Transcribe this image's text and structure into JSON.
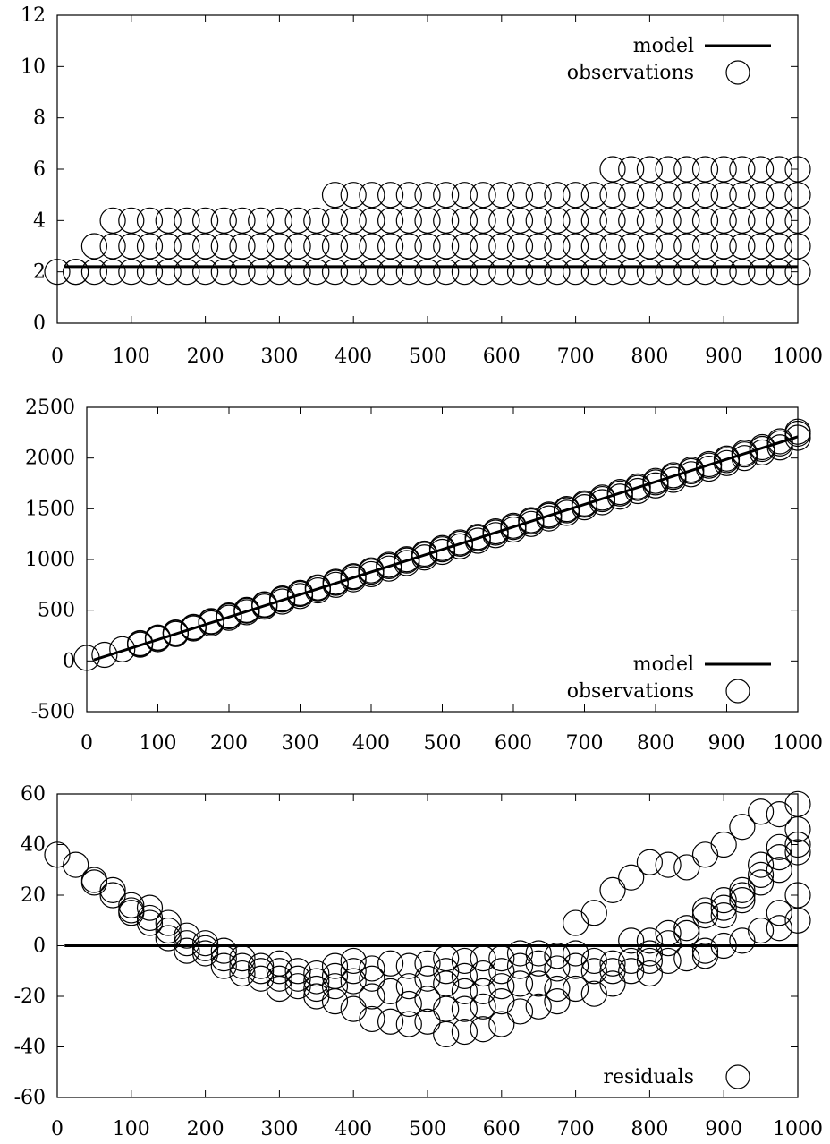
{
  "chart_data": [
    {
      "type": "scatter",
      "title": "",
      "xlabel": "",
      "ylabel": "",
      "xlim": [
        0,
        1000
      ],
      "ylim": [
        0,
        12
      ],
      "xticks": [
        0,
        100,
        200,
        300,
        400,
        500,
        600,
        700,
        800,
        900,
        1000
      ],
      "yticks": [
        0,
        2,
        4,
        6,
        8,
        10,
        12
      ],
      "xtick_labels": [
        "0",
        "100",
        "200",
        "300",
        "400",
        "500",
        "600",
        "700",
        "800",
        "900",
        "1000"
      ],
      "ytick_labels": [
        "0",
        "2",
        "4",
        "6",
        "8",
        "10",
        "12"
      ],
      "legend": {
        "placement": "top-right",
        "entries": [
          "model",
          "observations"
        ]
      },
      "series": [
        {
          "name": "model",
          "kind": "line",
          "x": [
            10,
            1000
          ],
          "y": [
            2.2,
            2.2
          ]
        },
        {
          "name": "observations",
          "kind": "markers",
          "marker": "open-circle",
          "x_grid": [
            0,
            25,
            50,
            75,
            100,
            125,
            150,
            175,
            200,
            225,
            250,
            275,
            300,
            325,
            350,
            375,
            400,
            425,
            450,
            475,
            500,
            525,
            550,
            575,
            600,
            625,
            650,
            675,
            700,
            725,
            750,
            775,
            800,
            825,
            850,
            875,
            900,
            925,
            950,
            975,
            1000
          ],
          "levels": [
            {
              "y": 2,
              "x_from": 0,
              "x_to": 1000
            },
            {
              "y": 3,
              "x_from": 50,
              "x_to": 1000
            },
            {
              "y": 4,
              "x_from": 75,
              "x_to": 1000
            },
            {
              "y": 5,
              "x_from": 375,
              "x_to": 1000
            },
            {
              "y": 6,
              "x_from": 750,
              "x_to": 1000
            }
          ],
          "extra_points": [
            {
              "x": 25,
              "y": 2
            }
          ]
        }
      ]
    },
    {
      "type": "scatter",
      "title": "",
      "xlabel": "",
      "ylabel": "",
      "xlim": [
        0,
        1000
      ],
      "ylim": [
        -500,
        2500
      ],
      "xticks": [
        0,
        100,
        200,
        300,
        400,
        500,
        600,
        700,
        800,
        900,
        1000
      ],
      "yticks": [
        -500,
        0,
        500,
        1000,
        1500,
        2000,
        2500
      ],
      "xtick_labels": [
        "0",
        "100",
        "200",
        "300",
        "400",
        "500",
        "600",
        "700",
        "800",
        "900",
        "1000"
      ],
      "ytick_labels": [
        "-500",
        "0",
        "500",
        "1000",
        "1500",
        "2000",
        "2500"
      ],
      "legend": {
        "placement": "bottom-right",
        "entries": [
          "model",
          "observations"
        ]
      },
      "series": [
        {
          "name": "model",
          "kind": "line",
          "x": [
            10,
            1000
          ],
          "y": [
            10,
            2210
          ]
        },
        {
          "name": "observations",
          "kind": "markers",
          "marker": "open-circle",
          "x_grid": [
            0,
            25,
            50,
            75,
            100,
            125,
            150,
            175,
            200,
            225,
            250,
            275,
            300,
            325,
            350,
            375,
            400,
            425,
            450,
            475,
            500,
            525,
            550,
            575,
            600,
            625,
            650,
            675,
            700,
            725,
            750,
            775,
            800,
            825,
            850,
            875,
            900,
            925,
            950,
            975,
            1000
          ],
          "y_formula": "approx. 2.2*x + 40, several overlapping observations per x",
          "y_center": [
            30,
            60,
            115,
            170,
            225,
            275,
            330,
            385,
            440,
            495,
            550,
            605,
            660,
            715,
            770,
            825,
            880,
            935,
            990,
            1045,
            1100,
            1155,
            1210,
            1265,
            1320,
            1375,
            1430,
            1485,
            1540,
            1595,
            1650,
            1705,
            1760,
            1815,
            1870,
            1925,
            1980,
            2035,
            2090,
            2145,
            2240
          ],
          "spread": [
            0,
            0,
            0,
            10,
            10,
            10,
            10,
            15,
            15,
            15,
            15,
            20,
            20,
            20,
            20,
            20,
            25,
            25,
            25,
            25,
            25,
            25,
            25,
            25,
            25,
            25,
            25,
            25,
            25,
            30,
            30,
            30,
            30,
            30,
            30,
            30,
            30,
            35,
            35,
            40,
            40
          ]
        }
      ]
    },
    {
      "type": "scatter",
      "title": "",
      "xlabel": "",
      "ylabel": "",
      "xlim": [
        0,
        1000
      ],
      "ylim": [
        -60,
        60
      ],
      "xticks": [
        0,
        100,
        200,
        300,
        400,
        500,
        600,
        700,
        800,
        900,
        1000
      ],
      "yticks": [
        -60,
        -40,
        -20,
        0,
        20,
        40,
        60
      ],
      "xtick_labels": [
        "0",
        "100",
        "200",
        "300",
        "400",
        "500",
        "600",
        "700",
        "800",
        "900",
        "1000"
      ],
      "ytick_labels": [
        "-60",
        "-40",
        "-20",
        "0",
        "20",
        "40",
        "60"
      ],
      "legend": {
        "placement": "bottom-right",
        "entries": [
          "residuals"
        ]
      },
      "series": [
        {
          "name": "zero",
          "kind": "line",
          "x": [
            10,
            1000
          ],
          "y": [
            0,
            0
          ]
        },
        {
          "name": "residuals",
          "kind": "markers",
          "marker": "open-circle",
          "points": [
            [
              0,
              36
            ],
            [
              25,
              32
            ],
            [
              50,
              26
            ],
            [
              50,
              25
            ],
            [
              75,
              22
            ],
            [
              75,
              20
            ],
            [
              100,
              16
            ],
            [
              100,
              14
            ],
            [
              100,
              13
            ],
            [
              125,
              15
            ],
            [
              125,
              11
            ],
            [
              125,
              9
            ],
            [
              150,
              9
            ],
            [
              150,
              6
            ],
            [
              150,
              3
            ],
            [
              175,
              4
            ],
            [
              175,
              1
            ],
            [
              175,
              -2
            ],
            [
              200,
              1
            ],
            [
              200,
              -1
            ],
            [
              200,
              -3
            ],
            [
              225,
              -2
            ],
            [
              225,
              -5
            ],
            [
              225,
              -8
            ],
            [
              250,
              -5
            ],
            [
              250,
              -8
            ],
            [
              250,
              -11
            ],
            [
              275,
              -8
            ],
            [
              275,
              -10
            ],
            [
              275,
              -13
            ],
            [
              300,
              -7
            ],
            [
              300,
              -10
            ],
            [
              300,
              -13
            ],
            [
              300,
              -17
            ],
            [
              325,
              -10
            ],
            [
              325,
              -13
            ],
            [
              325,
              -16
            ],
            [
              350,
              -11
            ],
            [
              350,
              -14
            ],
            [
              350,
              -17
            ],
            [
              350,
              -20
            ],
            [
              375,
              -8
            ],
            [
              375,
              -12
            ],
            [
              375,
              -16
            ],
            [
              375,
              -22
            ],
            [
              400,
              -6
            ],
            [
              400,
              -10
            ],
            [
              400,
              -14
            ],
            [
              400,
              -25
            ],
            [
              425,
              -9
            ],
            [
              425,
              -13
            ],
            [
              425,
              -20
            ],
            [
              425,
              -29
            ],
            [
              450,
              -7
            ],
            [
              450,
              -18
            ],
            [
              450,
              -30
            ],
            [
              475,
              -8
            ],
            [
              475,
              -16
            ],
            [
              475,
              -23
            ],
            [
              475,
              -31
            ],
            [
              500,
              -7
            ],
            [
              500,
              -13
            ],
            [
              500,
              -21
            ],
            [
              500,
              -30
            ],
            [
              525,
              -5
            ],
            [
              525,
              -10
            ],
            [
              525,
              -15
            ],
            [
              525,
              -25
            ],
            [
              525,
              -35
            ],
            [
              550,
              -6
            ],
            [
              550,
              -12
            ],
            [
              550,
              -18
            ],
            [
              550,
              -25
            ],
            [
              550,
              -34
            ],
            [
              575,
              -5
            ],
            [
              575,
              -11
            ],
            [
              575,
              -18
            ],
            [
              575,
              -24
            ],
            [
              575,
              -33
            ],
            [
              600,
              -5
            ],
            [
              600,
              -10
            ],
            [
              600,
              -16
            ],
            [
              600,
              -22
            ],
            [
              600,
              -31
            ],
            [
              625,
              -3
            ],
            [
              625,
              -8
            ],
            [
              625,
              -15
            ],
            [
              625,
              -26
            ],
            [
              650,
              -3
            ],
            [
              650,
              -7
            ],
            [
              650,
              -15
            ],
            [
              650,
              -24
            ],
            [
              675,
              -4
            ],
            [
              675,
              -9
            ],
            [
              675,
              -17
            ],
            [
              675,
              -22
            ],
            [
              700,
              9
            ],
            [
              700,
              -3
            ],
            [
              700,
              -8
            ],
            [
              700,
              -17
            ],
            [
              725,
              13
            ],
            [
              725,
              -6
            ],
            [
              725,
              -10
            ],
            [
              725,
              -19
            ],
            [
              750,
              22
            ],
            [
              750,
              -7
            ],
            [
              750,
              -10
            ],
            [
              750,
              -15
            ],
            [
              775,
              27
            ],
            [
              775,
              2
            ],
            [
              775,
              -6
            ],
            [
              775,
              -10
            ],
            [
              800,
              33
            ],
            [
              800,
              2
            ],
            [
              800,
              -3
            ],
            [
              800,
              -6
            ],
            [
              800,
              -11
            ],
            [
              825,
              32
            ],
            [
              825,
              5
            ],
            [
              825,
              1
            ],
            [
              825,
              -6
            ],
            [
              850,
              31
            ],
            [
              850,
              7
            ],
            [
              850,
              5
            ],
            [
              850,
              -5
            ],
            [
              875,
              36
            ],
            [
              875,
              14
            ],
            [
              875,
              12
            ],
            [
              875,
              -2
            ],
            [
              875,
              -4
            ],
            [
              900,
              40
            ],
            [
              900,
              18
            ],
            [
              900,
              15
            ],
            [
              900,
              12
            ],
            [
              900,
              0
            ],
            [
              925,
              47
            ],
            [
              925,
              22
            ],
            [
              925,
              20
            ],
            [
              925,
              18
            ],
            [
              925,
              2
            ],
            [
              950,
              53
            ],
            [
              950,
              32
            ],
            [
              950,
              28
            ],
            [
              950,
              25
            ],
            [
              950,
              6
            ],
            [
              975,
              52
            ],
            [
              975,
              39
            ],
            [
              975,
              35
            ],
            [
              975,
              30
            ],
            [
              975,
              13
            ],
            [
              975,
              7
            ],
            [
              1000,
              56
            ],
            [
              1000,
              46
            ],
            [
              1000,
              40
            ],
            [
              1000,
              37
            ],
            [
              1000,
              20
            ],
            [
              1000,
              10
            ]
          ]
        }
      ]
    }
  ]
}
